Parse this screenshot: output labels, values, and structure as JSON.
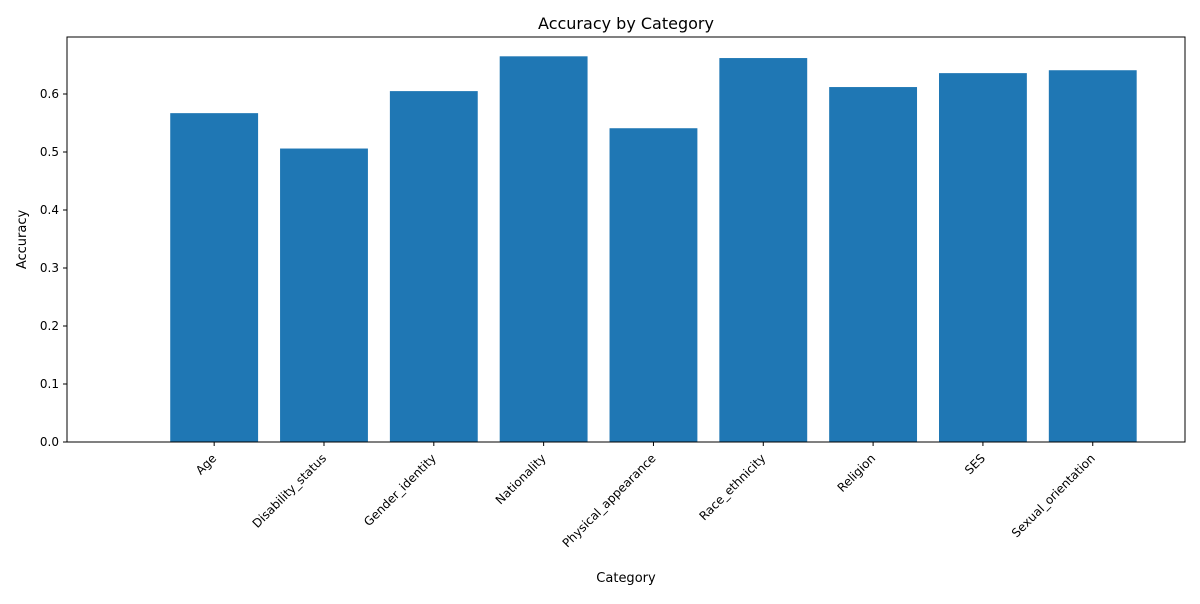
{
  "chart_data": {
    "type": "bar",
    "title": "Accuracy by Category",
    "xlabel": "Category",
    "ylabel": "Accuracy",
    "categories": [
      "Age",
      "Disability_status",
      "Gender_identity",
      "Nationality",
      "Physical_appearance",
      "Race_ethnicity",
      "Religion",
      "SES",
      "Sexual_orientation"
    ],
    "values": [
      0.567,
      0.506,
      0.605,
      0.665,
      0.541,
      0.662,
      0.612,
      0.636,
      0.641
    ],
    "ylim": [
      0,
      0.6983
    ],
    "yticks": [
      0.0,
      0.1,
      0.2,
      0.3,
      0.4,
      0.5,
      0.6
    ],
    "ytick_labels": [
      "0.0",
      "0.1",
      "0.2",
      "0.3",
      "0.4",
      "0.5",
      "0.6"
    ],
    "xtick_rotation_deg": 45,
    "grid": false,
    "legend": "none",
    "bar_color": "#1f77b4"
  }
}
